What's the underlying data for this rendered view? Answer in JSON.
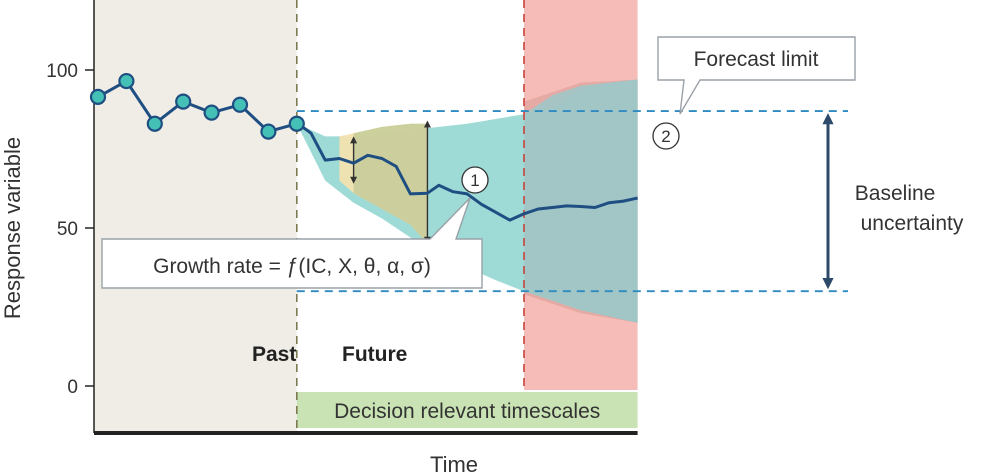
{
  "chart_data": {
    "type": "line",
    "title": "",
    "xlabel": "Time",
    "ylabel": "Response variable",
    "y_ticks": [
      "0",
      "50",
      "100"
    ],
    "ylim": [
      -12,
      120
    ],
    "grid": false,
    "past_series": {
      "name": "",
      "x": [
        1,
        2,
        3,
        4,
        5,
        6,
        7,
        8
      ],
      "y": [
        91.5,
        96.5,
        83,
        90,
        86.5,
        89,
        80.5,
        83
      ]
    },
    "forecast_series": {
      "name": "",
      "x": [
        8,
        8.2,
        8.5,
        9,
        9.5,
        10,
        10.5,
        11,
        11.5,
        12,
        12.6,
        13,
        13.5,
        14,
        14.5,
        15,
        15.5,
        16,
        16.5,
        17,
        17.5,
        18,
        18.5,
        19,
        19.5,
        20
      ],
      "y": [
        83,
        82,
        80,
        71.5,
        72,
        70.5,
        73,
        72,
        69.5,
        60.8,
        61,
        63.5,
        61.5,
        60.8,
        57.5,
        55,
        52.5,
        54.5,
        56,
        56.5,
        57,
        56.8,
        56.5,
        58,
        58.5,
        59.5
      ]
    },
    "uncertainty_band": {
      "x": [
        8,
        9,
        10,
        11,
        12,
        13,
        14,
        15,
        16,
        17,
        18,
        19,
        20
      ],
      "upper": [
        83,
        79,
        79,
        80,
        81,
        82,
        83,
        84.5,
        86,
        88,
        94,
        96,
        97
      ],
      "lower": [
        83,
        65,
        58,
        53,
        47,
        42,
        37.5,
        33.5,
        30,
        27,
        24,
        22,
        20
      ]
    },
    "yellow_band": {
      "x": [
        9.5,
        10,
        11,
        12,
        12.6
      ],
      "upper": [
        79,
        80,
        82,
        83,
        83
      ],
      "lower": [
        65,
        61,
        56,
        51,
        45
      ]
    },
    "red_band": {
      "x": [
        16,
        18,
        20
      ],
      "upper": [
        90,
        96,
        97
      ],
      "lower": [
        29,
        23,
        20
      ]
    },
    "vertical_arrows": [
      {
        "x": 10,
        "top": 79,
        "bottom": 64
      },
      {
        "x": 12.6,
        "top": 84,
        "bottom": 45
      }
    ],
    "baseline_uncertainty": {
      "upper": 87,
      "lower": 30
    },
    "present_x": 8,
    "forecast_limit_x": 16,
    "x_end": 20,
    "regions": {
      "past_label": "Past",
      "future_label": "Future",
      "decision_label": "Decision relevant timescales"
    },
    "annotations": {
      "forecast_limit": "Forecast limit",
      "baseline": [
        "Baseline",
        "uncertainty"
      ],
      "growth_rate": "Growth rate = ƒ(IC, X, θ, α, σ)",
      "marker_1": "1",
      "marker_2": "2"
    },
    "colors": {
      "past_bg": "#efede6",
      "line": "#1f4e82",
      "marker_fill": "#44c0b6",
      "band_teal": "#9edad6",
      "band_yellow": "#f2e1b0",
      "band_olive": "#c8cd9a",
      "forecast_red": "#f6bcb7",
      "baseline_dash": "#2e8ac1",
      "decision_green": "#c9e3b4",
      "axis": "#222222"
    }
  }
}
